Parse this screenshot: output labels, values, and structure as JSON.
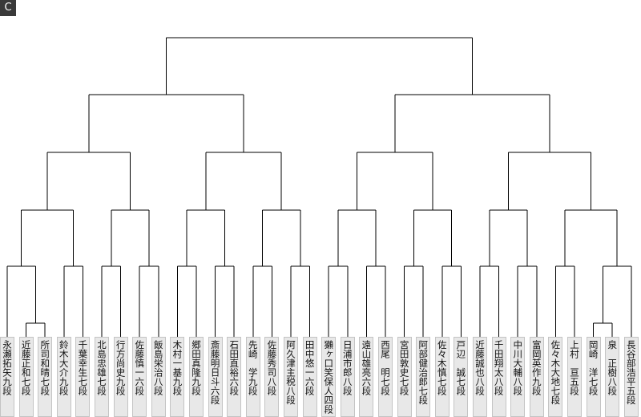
{
  "header": {
    "logo": "C"
  },
  "players": [
    "永瀬拓矢九段",
    "近藤正和七段",
    "所司和晴七段",
    "鈴木大介九段",
    "千葉幸生七段",
    "北島忠雄七段",
    "行方尚史九段",
    "佐藤慎一六段",
    "飯島栄治八段",
    "木村一基九段",
    "郷田真隆九段",
    "斎藤明日斗六段",
    "石田直裕六段",
    "先崎　学九段",
    "佐藤秀司八段",
    "阿久津主税八段",
    "田中悠一六段",
    "獺ヶ口笑保人四段",
    "日浦市郎八段",
    "遠山雄亮六段",
    "西尾　明七段",
    "宮田敦史七段",
    "阿部健治郎七段",
    "佐々木慎七段",
    "戸辺　誠七段",
    "近藤誠也八段",
    "千田翔太八段",
    "中川大輔八段",
    "富岡英作九段",
    "佐々木大地七段",
    "上村　亘五段",
    "岡崎　洋七段",
    "泉　正樹八段",
    "長谷部浩平五段"
  ]
}
